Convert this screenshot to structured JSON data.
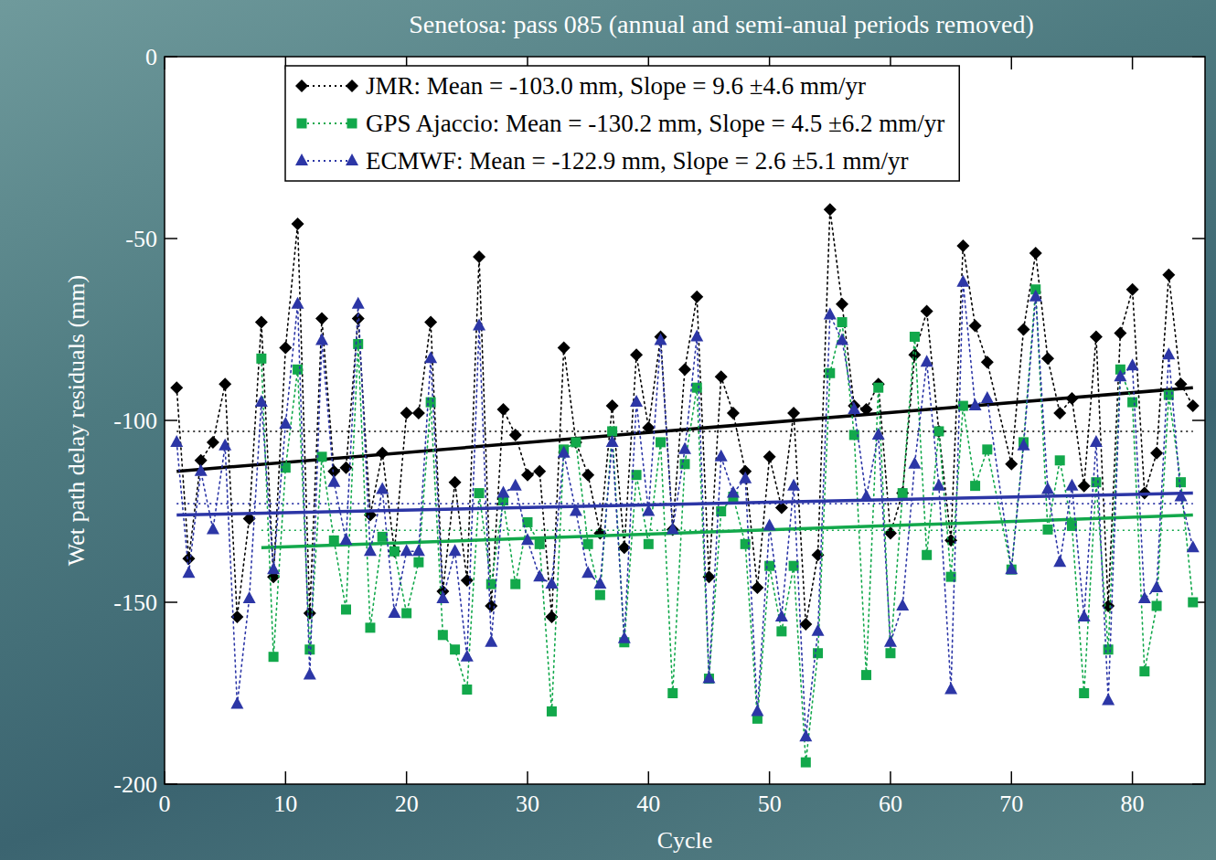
{
  "chart_data": {
    "type": "line",
    "title": "Senetosa: pass 085 (annual and semi-anual periods removed)",
    "x_label": "Cycle",
    "y_label": "Wet path delay residuals (mm)",
    "x": [
      1,
      2,
      3,
      4,
      5,
      6,
      7,
      8,
      9,
      10,
      11,
      12,
      13,
      14,
      15,
      16,
      17,
      18,
      19,
      20,
      21,
      22,
      23,
      24,
      25,
      26,
      27,
      28,
      29,
      30,
      31,
      32,
      33,
      34,
      35,
      36,
      37,
      38,
      39,
      40,
      41,
      42,
      43,
      44,
      45,
      46,
      47,
      48,
      49,
      50,
      51,
      52,
      53,
      54,
      55,
      56,
      57,
      58,
      59,
      60,
      61,
      62,
      63,
      64,
      65,
      66,
      67,
      68,
      70,
      71,
      72,
      73,
      74,
      75,
      76,
      77,
      78,
      79,
      80,
      81,
      82,
      83,
      84,
      85
    ],
    "xlim": [
      0,
      86
    ],
    "xticks": [
      0,
      10,
      20,
      30,
      40,
      50,
      60,
      70,
      80
    ],
    "ylim": [
      -200,
      0
    ],
    "yticks": [
      -200,
      -150,
      -100,
      -50,
      0
    ],
    "legend": "top",
    "series": [
      {
        "name": "JMR: Mean = -103.0 mm, Slope = 9.6 ±4.6 mm/yr",
        "color": "#000000",
        "marker": "diamond",
        "line_style": "dotted",
        "values": [
          -91,
          -138,
          -111,
          -106,
          -90,
          -154,
          -127,
          -73,
          -143,
          -80,
          -46,
          -153,
          -72,
          -114,
          -113,
          -72,
          -126,
          -109,
          -136,
          -98,
          -98,
          -73,
          -147,
          -117,
          -144,
          -55,
          -151,
          -97,
          -104,
          -115,
          -114,
          -154,
          -80,
          -106,
          -115,
          -131,
          -96,
          -135,
          -82,
          -102,
          -77,
          -130,
          -86,
          -66,
          -143,
          -88,
          -98,
          -114,
          -146,
          -110,
          -124,
          -98,
          -156,
          -137,
          -42,
          -68,
          -96,
          -97,
          -90,
          -131,
          -120,
          -82,
          -70,
          -103,
          -133,
          -52,
          -74,
          -84,
          -112,
          -75,
          -54,
          -83,
          -98,
          -94,
          -118,
          -77,
          -151,
          -76,
          -64,
          -120,
          -109,
          -60,
          -90,
          -96
        ],
        "mean": -103.0,
        "trend": {
          "x": [
            1,
            85
          ],
          "values": [
            -114,
            -91
          ]
        }
      },
      {
        "name": "GPS Ajaccio: Mean = -130.2 mm, Slope = 4.5 ±6.2 mm/yr",
        "color": "#12a84b",
        "marker": "square",
        "line_style": "dotted",
        "values": [
          null,
          null,
          null,
          null,
          null,
          null,
          null,
          -83,
          -165,
          -113,
          -86,
          -163,
          -110,
          -133,
          -152,
          -79,
          -157,
          -132,
          -136,
          -153,
          -139,
          -95,
          -159,
          -163,
          -174,
          -120,
          -145,
          -122,
          -145,
          -128,
          -134,
          -180,
          -108,
          -106,
          -134,
          -148,
          -103,
          -161,
          -115,
          -134,
          -106,
          -175,
          -112,
          -91,
          -171,
          -125,
          -121,
          -134,
          -182,
          -140,
          -158,
          -140,
          -194,
          -164,
          -87,
          -73,
          -104,
          -170,
          -91,
          -164,
          -120,
          -77,
          -137,
          -103,
          -143,
          -96,
          -118,
          -108,
          -141,
          -106,
          -64,
          -130,
          -111,
          -129,
          -175,
          -117,
          -163,
          -86,
          -95,
          -169,
          -151,
          -93,
          -117,
          -150
        ],
        "mean": -130.2,
        "trend": {
          "x": [
            8,
            85
          ],
          "values": [
            -135,
            -126
          ]
        }
      },
      {
        "name": "ECMWF: Mean = -122.9 mm, Slope = 2.6 ±5.1 mm/yr",
        "color": "#2c36a6",
        "marker": "triangle",
        "line_style": "dotted",
        "values": [
          -106,
          -142,
          -114,
          -130,
          -107,
          -178,
          -149,
          -95,
          -141,
          -101,
          -68,
          -170,
          -78,
          -117,
          -133,
          -68,
          -136,
          -119,
          -153,
          -136,
          -136,
          -83,
          -149,
          -136,
          -165,
          -74,
          -161,
          -120,
          -118,
          -133,
          -143,
          -145,
          -109,
          -125,
          -142,
          -145,
          -106,
          -160,
          -95,
          -125,
          -78,
          -130,
          -108,
          -77,
          -171,
          -110,
          -120,
          -116,
          -180,
          -129,
          -154,
          -118,
          -187,
          -158,
          -71,
          -78,
          -97,
          -121,
          -104,
          -161,
          -151,
          -112,
          -84,
          -118,
          -174,
          -62,
          -96,
          -94,
          -141,
          -107,
          -66,
          -119,
          -139,
          -118,
          -154,
          -106,
          -177,
          -88,
          -85,
          -149,
          -146,
          -82,
          -121,
          -135
        ],
        "mean": -122.9,
        "trend": {
          "x": [
            1,
            85
          ],
          "values": [
            -126,
            -120
          ]
        }
      }
    ]
  }
}
